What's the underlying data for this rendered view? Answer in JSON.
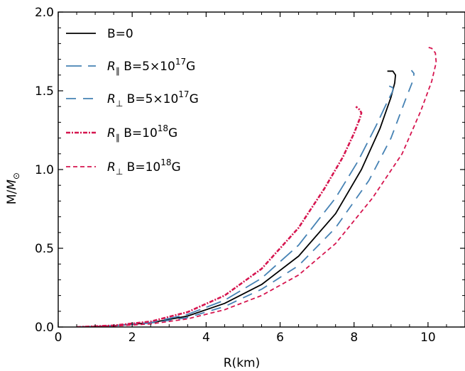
{
  "chart_data": {
    "type": "line",
    "xlabel": "R(km)",
    "ylabel": "M/M",
    "ylabel_sub": "⊙",
    "xlim": [
      0,
      11
    ],
    "ylim": [
      0,
      2.0
    ],
    "xticks": [
      0,
      2,
      4,
      6,
      8,
      10
    ],
    "xtick_labels": [
      "0",
      "2",
      "4",
      "6",
      "8",
      "10"
    ],
    "yticks": [
      0,
      0.5,
      1.0,
      1.5,
      2.0
    ],
    "ytick_labels": [
      "0.0",
      "0.5",
      "1.0",
      "1.5",
      "2.0"
    ],
    "grid": false,
    "legend_position": "top-left",
    "series": [
      {
        "name": "B=0",
        "legend": {
          "pre": "",
          "sub": "",
          "main": "B=0",
          "sup": "",
          "post": ""
        },
        "color": "#000000",
        "dash": "",
        "x": [
          0.5,
          1.5,
          2.5,
          3.5,
          4.5,
          5.5,
          6.5,
          7.5,
          8.2,
          8.7,
          9.0,
          9.1,
          9.12,
          9.05,
          8.9
        ],
        "y": [
          0.0,
          0.008,
          0.027,
          0.07,
          0.15,
          0.27,
          0.45,
          0.72,
          1.0,
          1.26,
          1.46,
          1.55,
          1.6,
          1.625,
          1.625
        ]
      },
      {
        "name": "R∥ B=5×10¹⁷G",
        "legend": {
          "pre": "R",
          "sub": "∥",
          "main": " B=5×10",
          "sup": "17",
          "post": "G"
        },
        "color": "#4682b4",
        "dash": "22,9",
        "x": [
          0.5,
          1.5,
          2.5,
          3.5,
          4.5,
          5.5,
          6.5,
          7.5,
          8.1,
          8.6,
          8.9,
          9.05,
          9.05,
          8.95
        ],
        "y": [
          0.0,
          0.008,
          0.029,
          0.08,
          0.17,
          0.31,
          0.52,
          0.82,
          1.05,
          1.28,
          1.43,
          1.5,
          1.52,
          1.53
        ]
      },
      {
        "name": "R⊥ B=5×10¹⁷G",
        "legend": {
          "pre": "R",
          "sub": "⊥",
          "main": " B=5×10",
          "sup": "17",
          "post": "G"
        },
        "color": "#4682b4",
        "dash": "14,10",
        "x": [
          0.5,
          1.5,
          2.5,
          3.5,
          4.5,
          5.5,
          6.5,
          7.5,
          8.4,
          9.0,
          9.4,
          9.6,
          9.62,
          9.55
        ],
        "y": [
          0.0,
          0.007,
          0.025,
          0.06,
          0.13,
          0.24,
          0.39,
          0.63,
          0.93,
          1.2,
          1.45,
          1.57,
          1.61,
          1.63
        ]
      },
      {
        "name": "R∥ B=10¹⁸G",
        "legend": {
          "pre": "R",
          "sub": "∥",
          "main": " B=10",
          "sup": "18",
          "post": "G"
        },
        "color": "#d6154f",
        "dash": "6,2,2,2",
        "x": [
          0.5,
          1.5,
          2.5,
          3.5,
          4.5,
          5.5,
          6.5,
          7.2,
          7.7,
          8.0,
          8.15,
          8.2,
          8.15,
          8.05
        ],
        "y": [
          0.0,
          0.01,
          0.035,
          0.095,
          0.2,
          0.37,
          0.63,
          0.88,
          1.08,
          1.23,
          1.32,
          1.36,
          1.38,
          1.4
        ]
      },
      {
        "name": "R⊥ B=10¹⁸G",
        "legend": {
          "pre": "R",
          "sub": "⊥",
          "main": " B=10",
          "sup": "18",
          "post": "G"
        },
        "color": "#d6154f",
        "dash": "6,4",
        "x": [
          0.5,
          1.5,
          2.5,
          3.5,
          4.5,
          5.5,
          6.5,
          7.5,
          8.5,
          9.3,
          9.8,
          10.1,
          10.22,
          10.2,
          10.1,
          9.95
        ],
        "y": [
          0.0,
          0.006,
          0.02,
          0.052,
          0.11,
          0.2,
          0.33,
          0.53,
          0.82,
          1.1,
          1.37,
          1.56,
          1.68,
          1.74,
          1.77,
          1.78
        ]
      }
    ]
  }
}
